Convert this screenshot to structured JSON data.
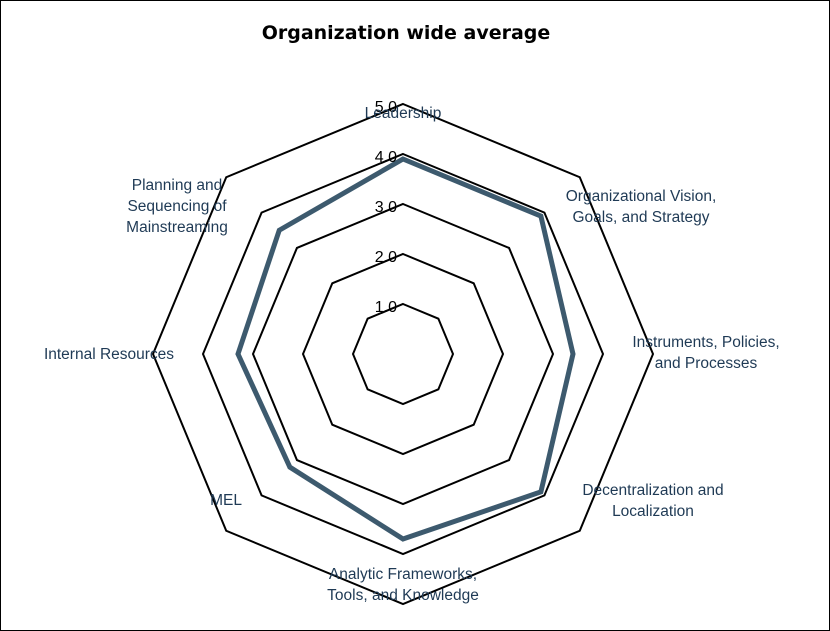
{
  "chart_data": {
    "type": "radar",
    "title": "Organization wide average",
    "categories": [
      [
        "Leadership"
      ],
      [
        "Organizational Vision,",
        "Goals, and Strategy"
      ],
      [
        "Instruments, Policies,",
        "and Processes"
      ],
      [
        "Decentralization and",
        "Localization"
      ],
      [
        "Analytic Frameworks,",
        "Tools, and Knowledge"
      ],
      [
        "MEL"
      ],
      [
        "Internal Resources"
      ],
      [
        "Planning and",
        "Sequencing of",
        "Mainstreaming"
      ]
    ],
    "series": [
      {
        "values": [
          3.9,
          3.9,
          3.4,
          3.9,
          3.7,
          3.2,
          3.3,
          3.5
        ]
      }
    ],
    "rlim": [
      0,
      5
    ],
    "ticks": [
      "1.0",
      "2.0",
      "3.0",
      "4.0",
      "5.0"
    ],
    "grid": true,
    "colors": {
      "series": "#3d5a6e",
      "grid": "#000000",
      "text": "#1f3a55"
    }
  }
}
